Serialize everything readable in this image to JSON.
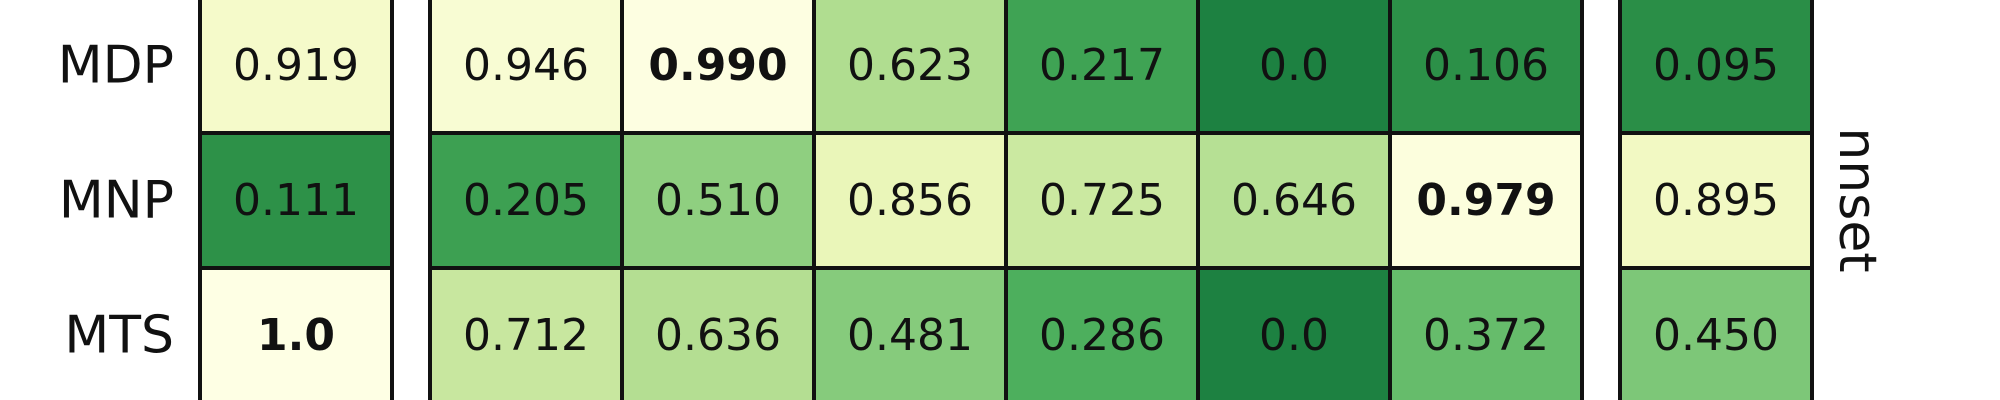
{
  "chart_data": {
    "type": "heatmap",
    "colormap": "Greens (light yellow = high, dark green = low)",
    "colors": {
      "cell_border": "#111111",
      "text": "#111111"
    },
    "side_label": "nnset",
    "rows": [
      "MDP",
      "MNP",
      "MTS"
    ],
    "groups": [
      {
        "columns": 1
      },
      {
        "columns": 6
      },
      {
        "columns": 1
      }
    ],
    "values": [
      [
        "0.919",
        "0.946",
        "0.990",
        "0.623",
        "0.217",
        "0.0",
        "0.106",
        "0.095"
      ],
      [
        "0.111",
        "0.205",
        "0.510",
        "0.856",
        "0.725",
        "0.646",
        "0.979",
        "0.895"
      ],
      [
        "1.0",
        "0.712",
        "0.636",
        "0.481",
        "0.286",
        "0.0",
        "0.372",
        "0.450"
      ]
    ],
    "bold": [
      [
        false,
        false,
        true,
        false,
        false,
        false,
        false,
        false
      ],
      [
        false,
        false,
        false,
        false,
        false,
        false,
        true,
        false
      ],
      [
        true,
        false,
        false,
        false,
        false,
        false,
        false,
        false
      ]
    ]
  }
}
